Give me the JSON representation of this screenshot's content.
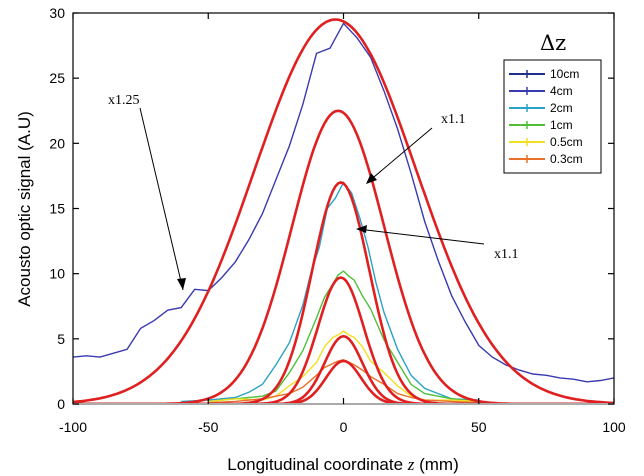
{
  "chart_data": {
    "type": "line",
    "title": "",
    "xlabel": "Longitudinal coordinate z (mm)",
    "ylabel": "Acousto optic signal (A.U)",
    "xlim": [
      -100,
      100
    ],
    "ylim": [
      0,
      30
    ],
    "xticks": [
      -100,
      -50,
      0,
      50,
      100
    ],
    "yticks": [
      0,
      5,
      10,
      15,
      20,
      25,
      30
    ],
    "grid": false,
    "legend": {
      "title": "Δz",
      "position": "top-right"
    },
    "series": [
      {
        "name": "10cm",
        "color": "#1f2f8f",
        "x": [],
        "y": []
      },
      {
        "name": "4cm",
        "color": "#3a3ab0",
        "x": [
          -100,
          -95,
          -90,
          -85,
          -80,
          -75,
          -70,
          -65,
          -60,
          -55,
          -50,
          -45,
          -40,
          -35,
          -30,
          -25,
          -20,
          -15,
          -10,
          -5,
          0,
          5,
          10,
          15,
          20,
          25,
          30,
          35,
          40,
          45,
          50,
          55,
          60,
          65,
          70,
          75,
          80,
          85,
          90,
          95,
          100
        ],
        "y": [
          3.6,
          3.7,
          3.6,
          3.9,
          4.2,
          5.8,
          6.4,
          7.2,
          7.4,
          8.8,
          8.7,
          9.7,
          10.9,
          12.6,
          14.6,
          17.2,
          19.8,
          23.0,
          26.9,
          27.3,
          29.2,
          28.1,
          26.6,
          24.0,
          21.1,
          17.7,
          14.0,
          11.0,
          8.3,
          6.3,
          4.5,
          3.6,
          3.0,
          2.6,
          2.3,
          2.2,
          2.0,
          1.9,
          1.7,
          1.8,
          2.0
        ]
      },
      {
        "name": "2cm",
        "color": "#2aa3c6",
        "x": [
          -60,
          -50,
          -40,
          -35,
          -30,
          -25,
          -20,
          -15,
          -12,
          -9,
          -6,
          -3,
          0,
          3,
          6,
          9,
          12,
          15,
          20,
          25,
          30,
          35,
          40,
          50
        ],
        "y": [
          0.2,
          0.3,
          0.5,
          0.9,
          1.5,
          3.0,
          4.7,
          7.6,
          10.1,
          12.0,
          15.0,
          15.8,
          17.0,
          16.2,
          14.3,
          12.1,
          9.3,
          7.0,
          4.2,
          2.2,
          1.2,
          0.8,
          0.4,
          0.3
        ]
      },
      {
        "name": "1cm",
        "color": "#4fbf3a",
        "x": [
          -50,
          -40,
          -30,
          -25,
          -20,
          -15,
          -10,
          -7,
          -4,
          -2,
          0,
          2,
          4,
          7,
          10,
          15,
          20,
          25,
          30,
          40,
          50
        ],
        "y": [
          0.2,
          0.4,
          0.6,
          1.0,
          2.4,
          4.1,
          6.6,
          8.2,
          9.2,
          9.9,
          10.2,
          9.8,
          9.5,
          8.3,
          7.3,
          4.9,
          3.2,
          1.5,
          0.8,
          0.4,
          0.2
        ]
      },
      {
        "name": "0.5cm",
        "color": "#f0e020",
        "x": [
          -50,
          -40,
          -30,
          -25,
          -20,
          -15,
          -10,
          -7,
          -4,
          -2,
          0,
          2,
          4,
          7,
          10,
          15,
          20,
          25,
          30,
          40,
          50
        ],
        "y": [
          0.2,
          0.4,
          0.3,
          0.6,
          1.4,
          2.1,
          3.2,
          4.4,
          5.1,
          5.3,
          5.6,
          5.3,
          5.1,
          4.4,
          3.3,
          2.4,
          1.4,
          0.6,
          0.3,
          0.3,
          0.2
        ]
      },
      {
        "name": "0.3cm",
        "color": "#e8702a",
        "x": [
          -50,
          -40,
          -30,
          -25,
          -20,
          -15,
          -10,
          -7,
          -4,
          -2,
          0,
          2,
          4,
          7,
          10,
          15,
          20,
          25,
          30,
          40,
          50
        ],
        "y": [
          0.1,
          0.2,
          0.4,
          0.6,
          0.8,
          1.3,
          2.2,
          2.8,
          3.1,
          3.3,
          3.4,
          3.2,
          3.0,
          2.6,
          2.1,
          1.5,
          0.8,
          0.5,
          0.3,
          0.2,
          0.1
        ]
      }
    ],
    "fits": [
      {
        "color": "#e02020",
        "center": -3,
        "peak": 29.5,
        "sigma": 30
      },
      {
        "color": "#e02020",
        "center": -2,
        "peak": 22.5,
        "sigma": 17
      },
      {
        "color": "#e02020",
        "center": -1,
        "peak": 17.0,
        "sigma": 10.5
      },
      {
        "color": "#e02020",
        "center": -1,
        "peak": 9.7,
        "sigma": 8.5
      },
      {
        "color": "#e02020",
        "center": 0,
        "peak": 5.2,
        "sigma": 7
      },
      {
        "color": "#e02020",
        "center": 0,
        "peak": 3.3,
        "sigma": 6.5
      }
    ],
    "annotations": [
      {
        "text": "x1.25",
        "point": [
          -60,
          6.8
        ]
      },
      {
        "text": "x1.1",
        "point": [
          10,
          17.5
        ]
      },
      {
        "text": "x1.1",
        "point": [
          5,
          14.6
        ]
      }
    ]
  }
}
